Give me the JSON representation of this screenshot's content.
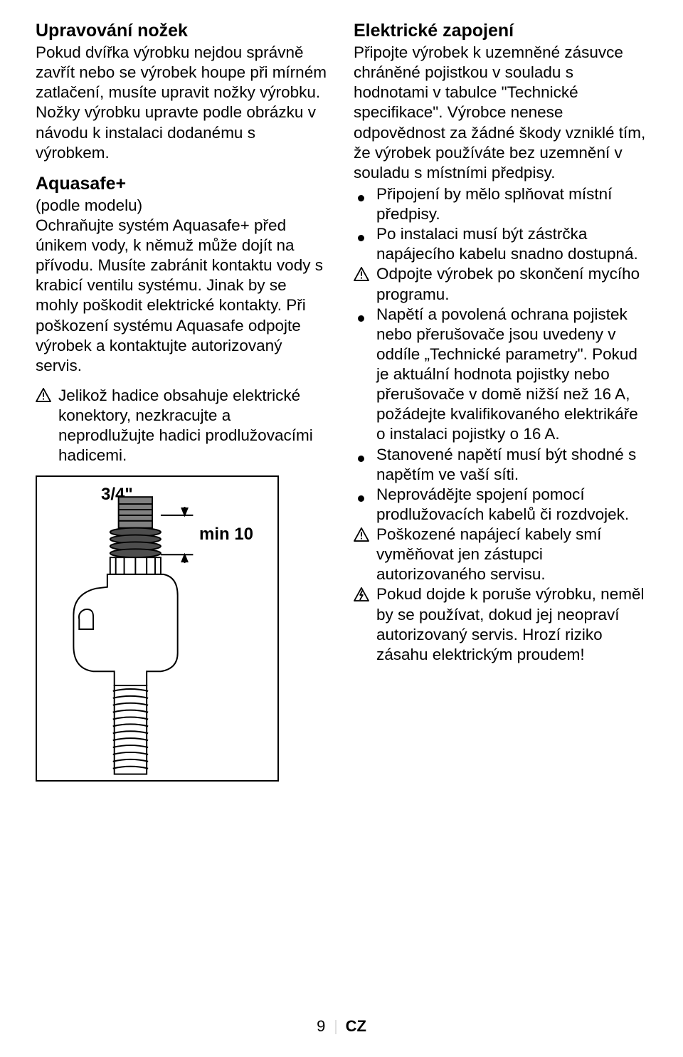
{
  "left": {
    "h1": "Upravování nožek",
    "p1": "Pokud dvířka výrobku nejdou správně zavřít nebo se výrobek houpe při mírném zatlačení, musíte upravit nožky výrobku. Nožky výrobku upravte podle obrázku v návodu k instalaci dodanému s výrobkem.",
    "h2": "Aquasafe+",
    "sub": "(podle modelu)",
    "p2": "Ochraňujte systém Aquasafe+ před únikem vody, k němuž může dojít na přívodu. Musíte zabránit kontaktu vody s krabicí ventilu systému. Jinak by se mohly poškodit elektrické kontakty. Při poškození systému Aquasafe odpojte výrobek a kontaktujte autorizovaný servis.",
    "warn": "Jelikož hadice obsahuje elektrické konektory, nezkracujte a neprodlužujte hadici prodlužovacími hadicemi.",
    "diagram": {
      "label34": "3/4\"",
      "labelMin10": "min 10",
      "colors": {
        "stroke": "#000000",
        "cap_fill": "#808080",
        "disc_fill": "#4d4d4d",
        "body_fill": "#ffffff"
      }
    }
  },
  "right": {
    "h1": "Elektrické zapojení",
    "p1": "Připojte výrobek k uzemněné zásuvce chráněné pojistkou v souladu s hodnotami v tabulce \"Technické specifikace\". Výrobce nenese odpovědnost za žádné škody vzniklé tím, že výrobek používáte bez uzemnění v souladu s místními předpisy.",
    "items": [
      {
        "type": "bullet",
        "text": "Připojení by mělo splňovat místní předpisy."
      },
      {
        "type": "bullet",
        "text": "Po instalaci musí být zástrčka napájecího kabelu snadno dostupná."
      },
      {
        "type": "warn",
        "text": "Odpojte výrobek po skončení mycího programu."
      },
      {
        "type": "bullet",
        "text": "Napětí a povolená ochrana pojistek nebo přerušovače jsou uvedeny v oddíle „Technické parametry\". Pokud je aktuální hodnota pojistky nebo přerušovače v domě nižší než 16 A, požádejte kvalifikovaného elektrikáře o instalaci pojistky o 16 A."
      },
      {
        "type": "bullet",
        "text": "Stanovené napětí musí být shodné s napětím ve vaší síti."
      },
      {
        "type": "bullet",
        "text": "Neprovádějte spojení pomocí prodlužovacích kabelů či rozdvojek."
      },
      {
        "type": "warn",
        "text": "Poškozené napájecí kabely smí vyměňovat jen zástupci autorizovaného servisu."
      },
      {
        "type": "warn-shock",
        "text": "Pokud dojde k poruše výrobku, neměl by se používat, dokud jej neopraví autorizovaný servis. Hrozí riziko zásahu elektrickým proudem!"
      }
    ]
  },
  "footer": {
    "page": "9",
    "code": "CZ"
  }
}
